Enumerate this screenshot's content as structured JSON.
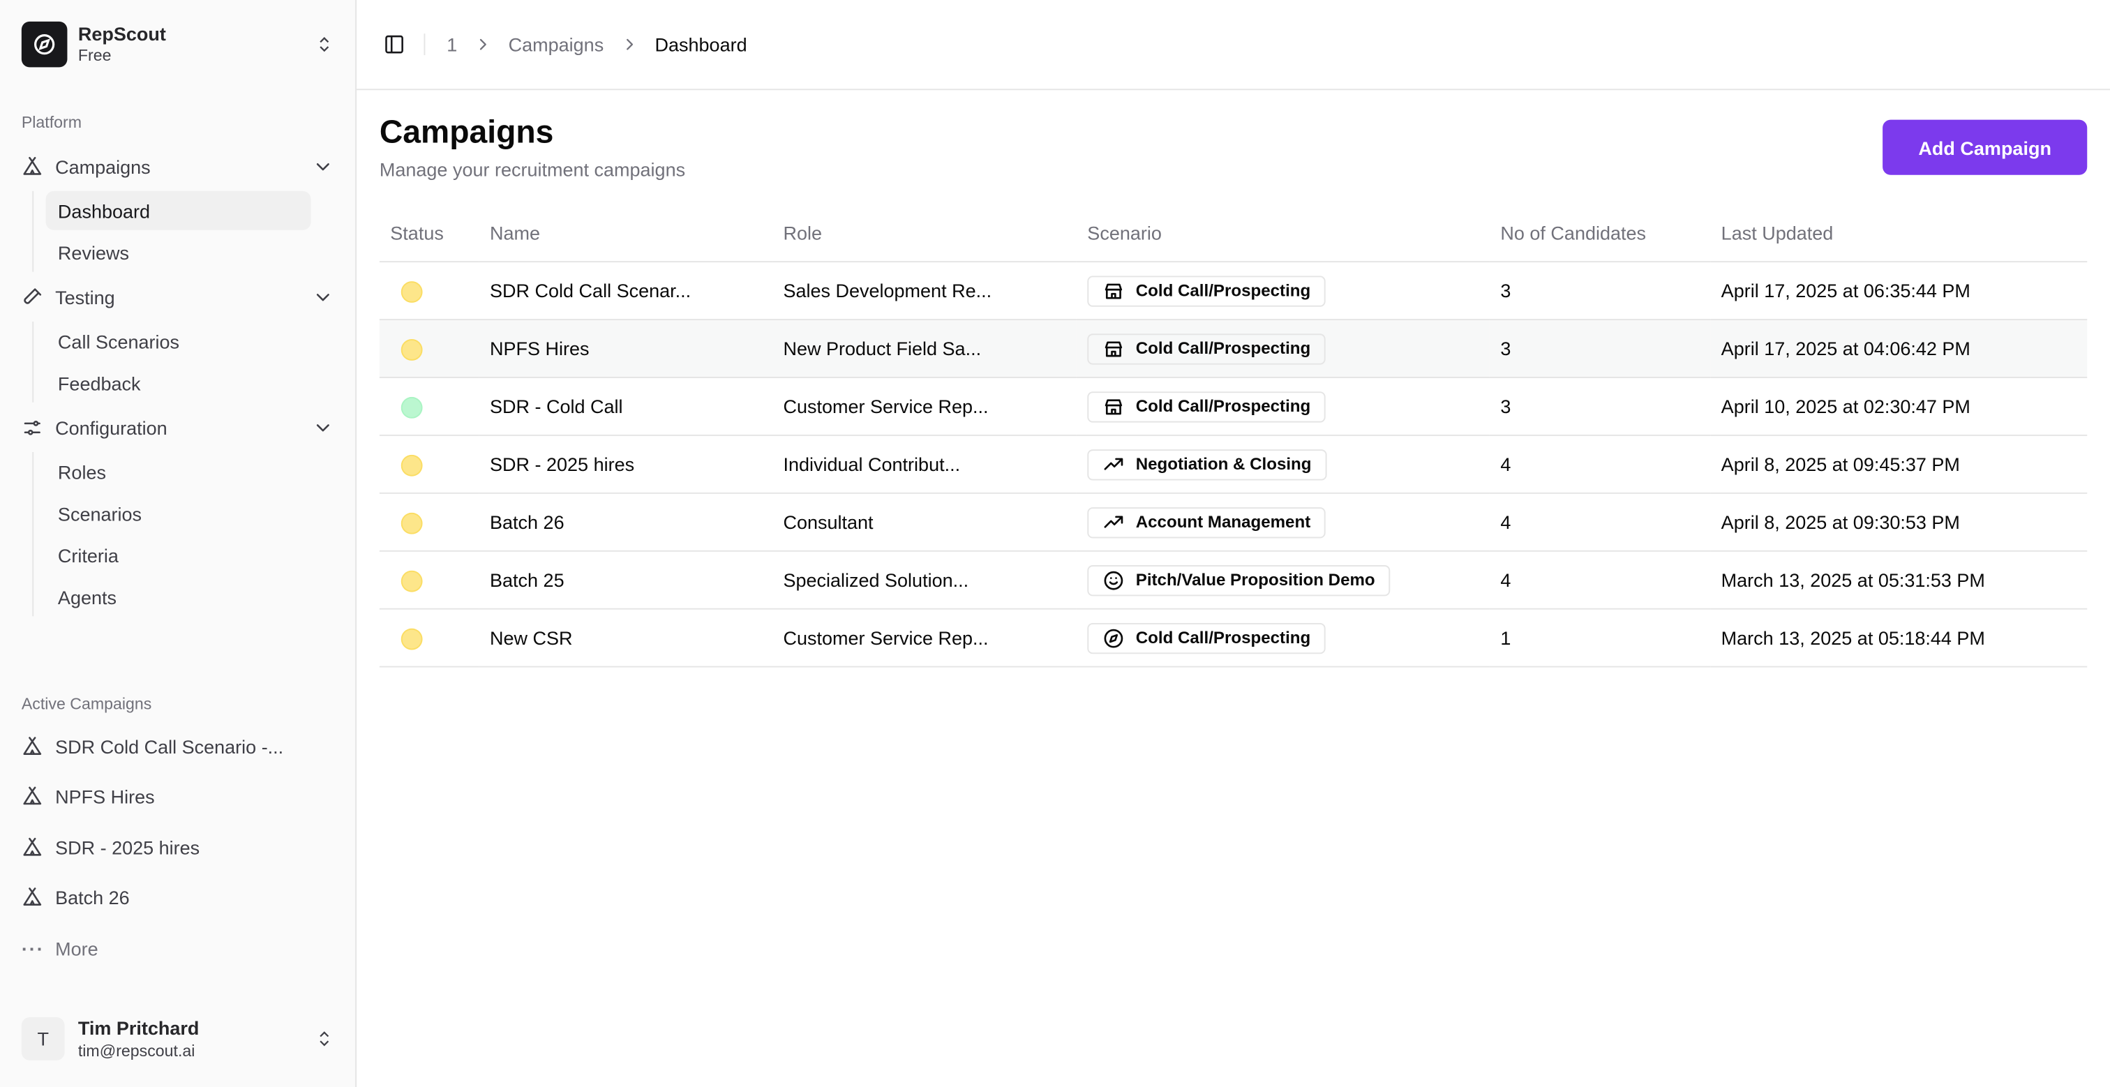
{
  "brand": {
    "name": "RepScout",
    "plan": "Free"
  },
  "sidebar": {
    "platform_label": "Platform",
    "groups": [
      {
        "label": "Campaigns",
        "icon": "tent-icon",
        "items": [
          "Dashboard",
          "Reviews"
        ]
      },
      {
        "label": "Testing",
        "icon": "test-tube-icon",
        "items": [
          "Call Scenarios",
          "Feedback"
        ]
      },
      {
        "label": "Configuration",
        "icon": "sliders-icon",
        "items": [
          "Roles",
          "Scenarios",
          "Criteria",
          "Agents"
        ]
      }
    ],
    "active_item": "Dashboard",
    "active_label": "Active Campaigns",
    "active_campaigns": [
      "SDR Cold Call Scenario -...",
      "NPFS Hires",
      "SDR - 2025 hires",
      "Batch 26"
    ],
    "more_label": "More"
  },
  "user": {
    "initial": "T",
    "name": "Tim Pritchard",
    "email": "tim@repscout.ai"
  },
  "breadcrumb": [
    "1",
    "Campaigns",
    "Dashboard"
  ],
  "page": {
    "title": "Campaigns",
    "subtitle": "Manage your recruitment campaigns",
    "add_button": "Add Campaign"
  },
  "colors": {
    "accent": "#7c3aed",
    "status_yellow": "#fde68a",
    "status_green": "#bbf7d0"
  },
  "table": {
    "headers": [
      "Status",
      "Name",
      "Role",
      "Scenario",
      "No of Candidates",
      "Last Updated"
    ],
    "rows": [
      {
        "status": "yellow",
        "name": "SDR Cold Call Scenar...",
        "role": "Sales Development Re...",
        "scenario": "Cold Call/Prospecting",
        "scenario_icon": "store-icon",
        "candidates": "3",
        "updated": "April 17, 2025 at 06:35:44 PM"
      },
      {
        "status": "yellow",
        "name": "NPFS Hires",
        "role": "New Product Field Sa...",
        "scenario": "Cold Call/Prospecting",
        "scenario_icon": "store-icon",
        "candidates": "3",
        "updated": "April 17, 2025 at 04:06:42 PM"
      },
      {
        "status": "green",
        "name": "SDR - Cold Call",
        "role": "Customer Service Rep...",
        "scenario": "Cold Call/Prospecting",
        "scenario_icon": "store-icon",
        "candidates": "3",
        "updated": "April 10, 2025 at 02:30:47 PM"
      },
      {
        "status": "yellow",
        "name": "SDR - 2025 hires",
        "role": "Individual Contribut...",
        "scenario": "Negotiation & Closing",
        "scenario_icon": "trending-up-icon",
        "candidates": "4",
        "updated": "April 8, 2025 at 09:45:37 PM"
      },
      {
        "status": "yellow",
        "name": "Batch 26",
        "role": "Consultant",
        "scenario": "Account Management",
        "scenario_icon": "trending-up-icon",
        "candidates": "4",
        "updated": "April 8, 2025 at 09:30:53 PM"
      },
      {
        "status": "yellow",
        "name": "Batch 25",
        "role": "Specialized Solution...",
        "scenario": "Pitch/Value Proposition Demo",
        "scenario_icon": "smile-icon",
        "candidates": "4",
        "updated": "March 13, 2025 at 05:31:53 PM"
      },
      {
        "status": "yellow",
        "name": "New CSR",
        "role": "Customer Service Rep...",
        "scenario": "Cold Call/Prospecting",
        "scenario_icon": "compass-icon",
        "candidates": "1",
        "updated": "March 13, 2025 at 05:18:44 PM"
      }
    ]
  }
}
